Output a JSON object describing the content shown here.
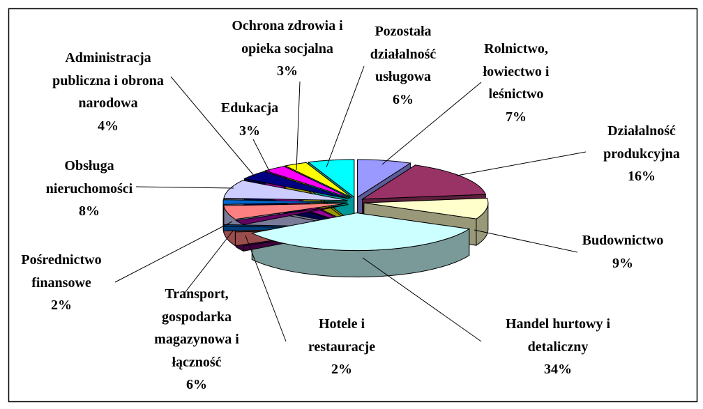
{
  "chart_data": {
    "type": "pie",
    "categories": [
      "Rolnictwo,\nłowiectwo i\nleśnictwo",
      "Działalność\nprodukcyjna",
      "Budownictwo",
      "Handel hurtowy i\ndetaliczny",
      "Hotele i\nrestauracje",
      "Transport,\ngospodarka\nmagazynowa i\nłączność",
      "Pośrednictwo\nfinansowe",
      "Obsługa\nnieruchomości",
      "Administracja\npubliczna i obrona\nnarodowa",
      "Edukacja",
      "Ochrona zdrowia i\nopieka socjalna",
      "Pozostała\ndziałalność\nusługowa"
    ],
    "values": [
      7,
      16,
      9,
      34,
      2,
      6,
      2,
      8,
      4,
      3,
      3,
      6
    ],
    "value_labels": [
      "7%",
      "16%",
      "9%",
      "34%",
      "2%",
      "6%",
      "2%",
      "8%",
      "4%",
      "3%",
      "3%",
      "6%"
    ],
    "colors": [
      "#9999ff",
      "#993366",
      "#ffffcc",
      "#ccffff",
      "#660066",
      "#ff8080",
      "#0066cc",
      "#ccccff",
      "#000080",
      "#ff00ff",
      "#ffff00",
      "#00ffff"
    ]
  }
}
